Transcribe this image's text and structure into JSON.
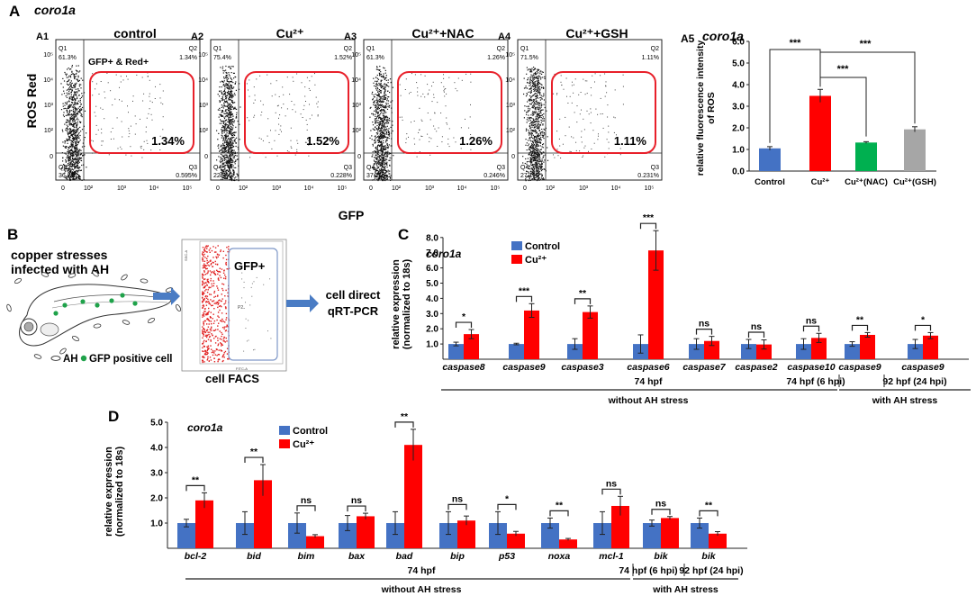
{
  "panel_letters": {
    "a": "A",
    "b": "B",
    "c": "C",
    "d": "D"
  },
  "colors": {
    "control": "#4472C4",
    "cu": "#FF0000",
    "nac": "#00B050",
    "gsh": "#A6A6A6",
    "gate": "#E8202A",
    "box": "#8fa6cc",
    "arrow": "#4a7cc4"
  },
  "panel_a": {
    "gene": "coro1a",
    "y_axis_label": "ROS Red",
    "x_axis_label": "GFP",
    "gate_label": "GFP+ & Red+",
    "ytick_labels": [
      "10⁵",
      "10⁴",
      "10³",
      "10²",
      "0"
    ],
    "xtick_labels": [
      "0",
      "10²",
      "10³",
      "10⁴",
      "10⁵"
    ],
    "plots": [
      {
        "id": "A1",
        "title": "control",
        "q1": "61.3%",
        "q2": "1.34%",
        "q3": "0.595%",
        "q4": "36.8%",
        "gate_pct": "1.34%"
      },
      {
        "id": "A2",
        "title": "Cu²⁺",
        "q1": "75.4%",
        "q2": "1.52%",
        "q3": "0.228%",
        "q4": "22.8%",
        "gate_pct": "1.52%"
      },
      {
        "id": "A3",
        "title": "Cu²⁺+NAC",
        "q1": "61.3%",
        "q2": "1.26%",
        "q3": "0.246%",
        "q4": "37.2%",
        "gate_pct": "1.26%"
      },
      {
        "id": "A4",
        "title": "Cu²⁺+GSH",
        "q1": "71.5%",
        "q2": "1.11%",
        "q3": "0.231%",
        "q4": "27.1%",
        "gate_pct": "1.11%"
      }
    ],
    "q_labels": {
      "q1": "Q1",
      "q2": "Q2",
      "q3": "Q3",
      "q4": "Q4"
    }
  },
  "panel_b": {
    "line1": "copper stresses",
    "line2": "infected with AH",
    "legend_ah": "AH",
    "legend_gfp": "GFP positive cell",
    "gfp_gate": "GFP+",
    "gate_id": "P2",
    "facs_label": "cell FACS",
    "y_small": "SSC-A",
    "x_small": "FITC-A",
    "result_line1": "cell direct",
    "result_line2": "qRT-PCR"
  },
  "chart_data": [
    {
      "id": "A5",
      "type": "bar",
      "title": "coro1a",
      "subtitle": "A5",
      "ylabel": "relative fluorescence intensity of ROS",
      "categories": [
        "Control",
        "Cu²⁺",
        "Cu²⁺(NAC)",
        "Cu²⁺(GSH)"
      ],
      "values": [
        1.05,
        3.48,
        1.32,
        1.93
      ],
      "errors": [
        0.08,
        0.3,
        0.04,
        0.12
      ],
      "ylim": [
        0,
        6
      ],
      "yticks": [
        "0.0",
        "1.0",
        "2.0",
        "3.0",
        "4.0",
        "5.0",
        "6.0"
      ],
      "significance": [
        {
          "from": 0,
          "to": 1,
          "label": "***"
        },
        {
          "from": 1,
          "to": 3,
          "label": "***"
        },
        {
          "from": 1,
          "to": 2,
          "label": "***"
        }
      ]
    },
    {
      "id": "C",
      "type": "bar",
      "title": "coro1a",
      "ylabel": "relative expression (normalized to 18s)",
      "legend": [
        "Control",
        "Cu²⁺"
      ],
      "categories": [
        "caspase8",
        "caspase9",
        "caspase3",
        "caspase6",
        "caspase7",
        "caspase2",
        "caspase10",
        "caspase9",
        "caspase9"
      ],
      "series": [
        {
          "name": "Control",
          "values": [
            1.0,
            1.0,
            1.0,
            1.0,
            1.0,
            1.0,
            1.0,
            1.0,
            1.0
          ],
          "errors": [
            0.12,
            0.05,
            0.35,
            0.6,
            0.35,
            0.3,
            0.35,
            0.15,
            0.3
          ]
        },
        {
          "name": "Cu²⁺",
          "values": [
            1.65,
            3.2,
            3.1,
            7.15,
            1.2,
            0.97,
            1.4,
            1.6,
            1.55
          ],
          "errors": [
            0.3,
            0.45,
            0.4,
            1.3,
            0.3,
            0.3,
            0.3,
            0.15,
            0.2
          ]
        }
      ],
      "significance": [
        "*",
        "***",
        "**",
        "***",
        "ns",
        "ns",
        "ns",
        "**",
        "*"
      ],
      "yticks": [
        "1.0",
        "2.0",
        "3.0",
        "4.0",
        "5.0",
        "6.0",
        "7.0",
        "8.0"
      ],
      "ylim": [
        0,
        8
      ],
      "groups": [
        {
          "label": "74 hpf",
          "stress": "without AH  stress"
        },
        {
          "label": "74 hpf (6 hpi)"
        },
        {
          "label": "92 hpf (24 hpi)",
          "stress": "with AH stress"
        }
      ]
    },
    {
      "id": "D",
      "type": "bar",
      "title": "coro1a",
      "ylabel": "relative expression (normalized to 18s)",
      "legend": [
        "Control",
        "Cu²⁺"
      ],
      "categories": [
        "bcl-2",
        "bid",
        "bim",
        "bax",
        "bad",
        "bip",
        "p53",
        "noxa",
        "mcl-1",
        "bik",
        "bik"
      ],
      "series": [
        {
          "name": "Control",
          "values": [
            1.0,
            1.0,
            1.0,
            1.0,
            1.0,
            1.0,
            1.0,
            1.0,
            1.0,
            1.0,
            1.0
          ],
          "errors": [
            0.15,
            0.45,
            0.4,
            0.3,
            0.45,
            0.45,
            0.45,
            0.2,
            0.45,
            0.12,
            0.2
          ]
        },
        {
          "name": "Cu²⁺",
          "values": [
            1.9,
            2.7,
            0.48,
            1.27,
            4.1,
            1.1,
            0.58,
            0.35,
            1.68,
            1.2,
            0.58
          ]
        }
      ],
      "significance": [
        "**",
        "**",
        "ns",
        "ns",
        "**",
        "ns",
        "*",
        "**",
        "ns",
        "ns",
        "**"
      ],
      "yticks": [
        "1.0",
        "2.0",
        "3.0",
        "4.0",
        "5.0"
      ],
      "ylim": [
        0,
        5
      ],
      "groups": [
        {
          "label": "74 hpf",
          "stress": "without AH  stress"
        },
        {
          "label": "74 hpf (6 hpi)"
        },
        {
          "label": "92 hpf (24 hpi)",
          "stress": "with AH stress"
        }
      ]
    }
  ]
}
